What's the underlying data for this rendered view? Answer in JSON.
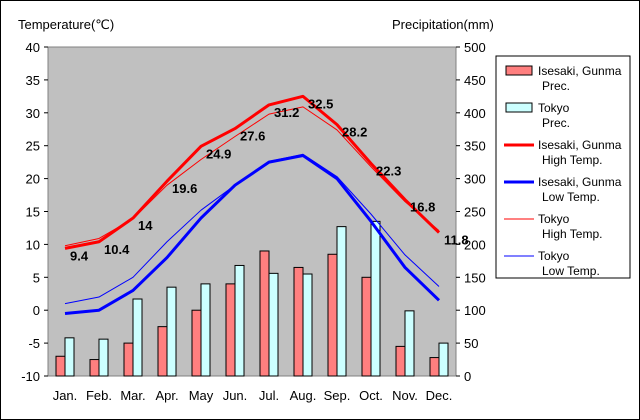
{
  "chart_data": {
    "type": "bar+line",
    "categories": [
      "Jan.",
      "Feb.",
      "Mar.",
      "Apr.",
      "May",
      "Jun.",
      "Jul.",
      "Aug.",
      "Sep.",
      "Oct.",
      "Nov.",
      "Dec."
    ],
    "y_left": {
      "label": "Temperature(℃)",
      "min": -10,
      "max": 40,
      "ticks": [
        40,
        35,
        30,
        25,
        20,
        15,
        10,
        5,
        0,
        -5,
        -10
      ]
    },
    "y_right": {
      "label": "Precipitation(mm)",
      "min": 0,
      "max": 500,
      "ticks": [
        500,
        450,
        400,
        350,
        300,
        250,
        200,
        150,
        100,
        50,
        0
      ]
    },
    "precip_series": [
      {
        "name_line1": "Isesaki, Gunma",
        "name_line2": "Prec.",
        "color": "#ff7f7f",
        "values": [
          30,
          25,
          50,
          75,
          100,
          140,
          190,
          165,
          185,
          150,
          45,
          28
        ]
      },
      {
        "name_line1": "Tokyo",
        "name_line2": "Prec.",
        "color": "#ccffff",
        "values": [
          58,
          56,
          117,
          135,
          140,
          168,
          156,
          155,
          227,
          235,
          99,
          50
        ]
      }
    ],
    "temp_series": [
      {
        "name_line1": "Isesaki, Gunma",
        "name_line2": "High Temp.",
        "color": "#ff0000",
        "width": 3,
        "values": [
          9.4,
          10.4,
          14,
          19.6,
          24.9,
          27.6,
          31.2,
          32.5,
          28.2,
          22.3,
          16.8,
          11.8
        ]
      },
      {
        "name_line1": "Isesaki, Gunma",
        "name_line2": "Low Temp.",
        "color": "#0000ff",
        "width": 3,
        "values": [
          -0.5,
          0,
          3,
          8,
          14,
          19,
          22.5,
          23.5,
          20,
          13.5,
          6.5,
          1.5
        ]
      },
      {
        "name_line1": "Tokyo",
        "name_line2": "High Temp.",
        "color": "#ff0000",
        "width": 1,
        "values": [
          9.8,
          10.9,
          13.9,
          19,
          22.9,
          26.4,
          29.8,
          30.9,
          27.4,
          21.8,
          16.5,
          12.1
        ]
      },
      {
        "name_line1": "Tokyo",
        "name_line2": "Low Temp.",
        "color": "#0000ff",
        "width": 1,
        "values": [
          1,
          2,
          5,
          10.4,
          15.2,
          19,
          22.6,
          23.7,
          20.3,
          14.6,
          8.4,
          3.6
        ]
      }
    ],
    "data_labels": {
      "values": [
        "9.4",
        "10.4",
        "14",
        "19.6",
        "24.9",
        "27.6",
        "31.2",
        "32.5",
        "28.2",
        "22.3",
        "16.8",
        "11.8"
      ]
    },
    "plot_background": "#c0c0c0",
    "legend_placement": "right",
    "grid": false
  }
}
